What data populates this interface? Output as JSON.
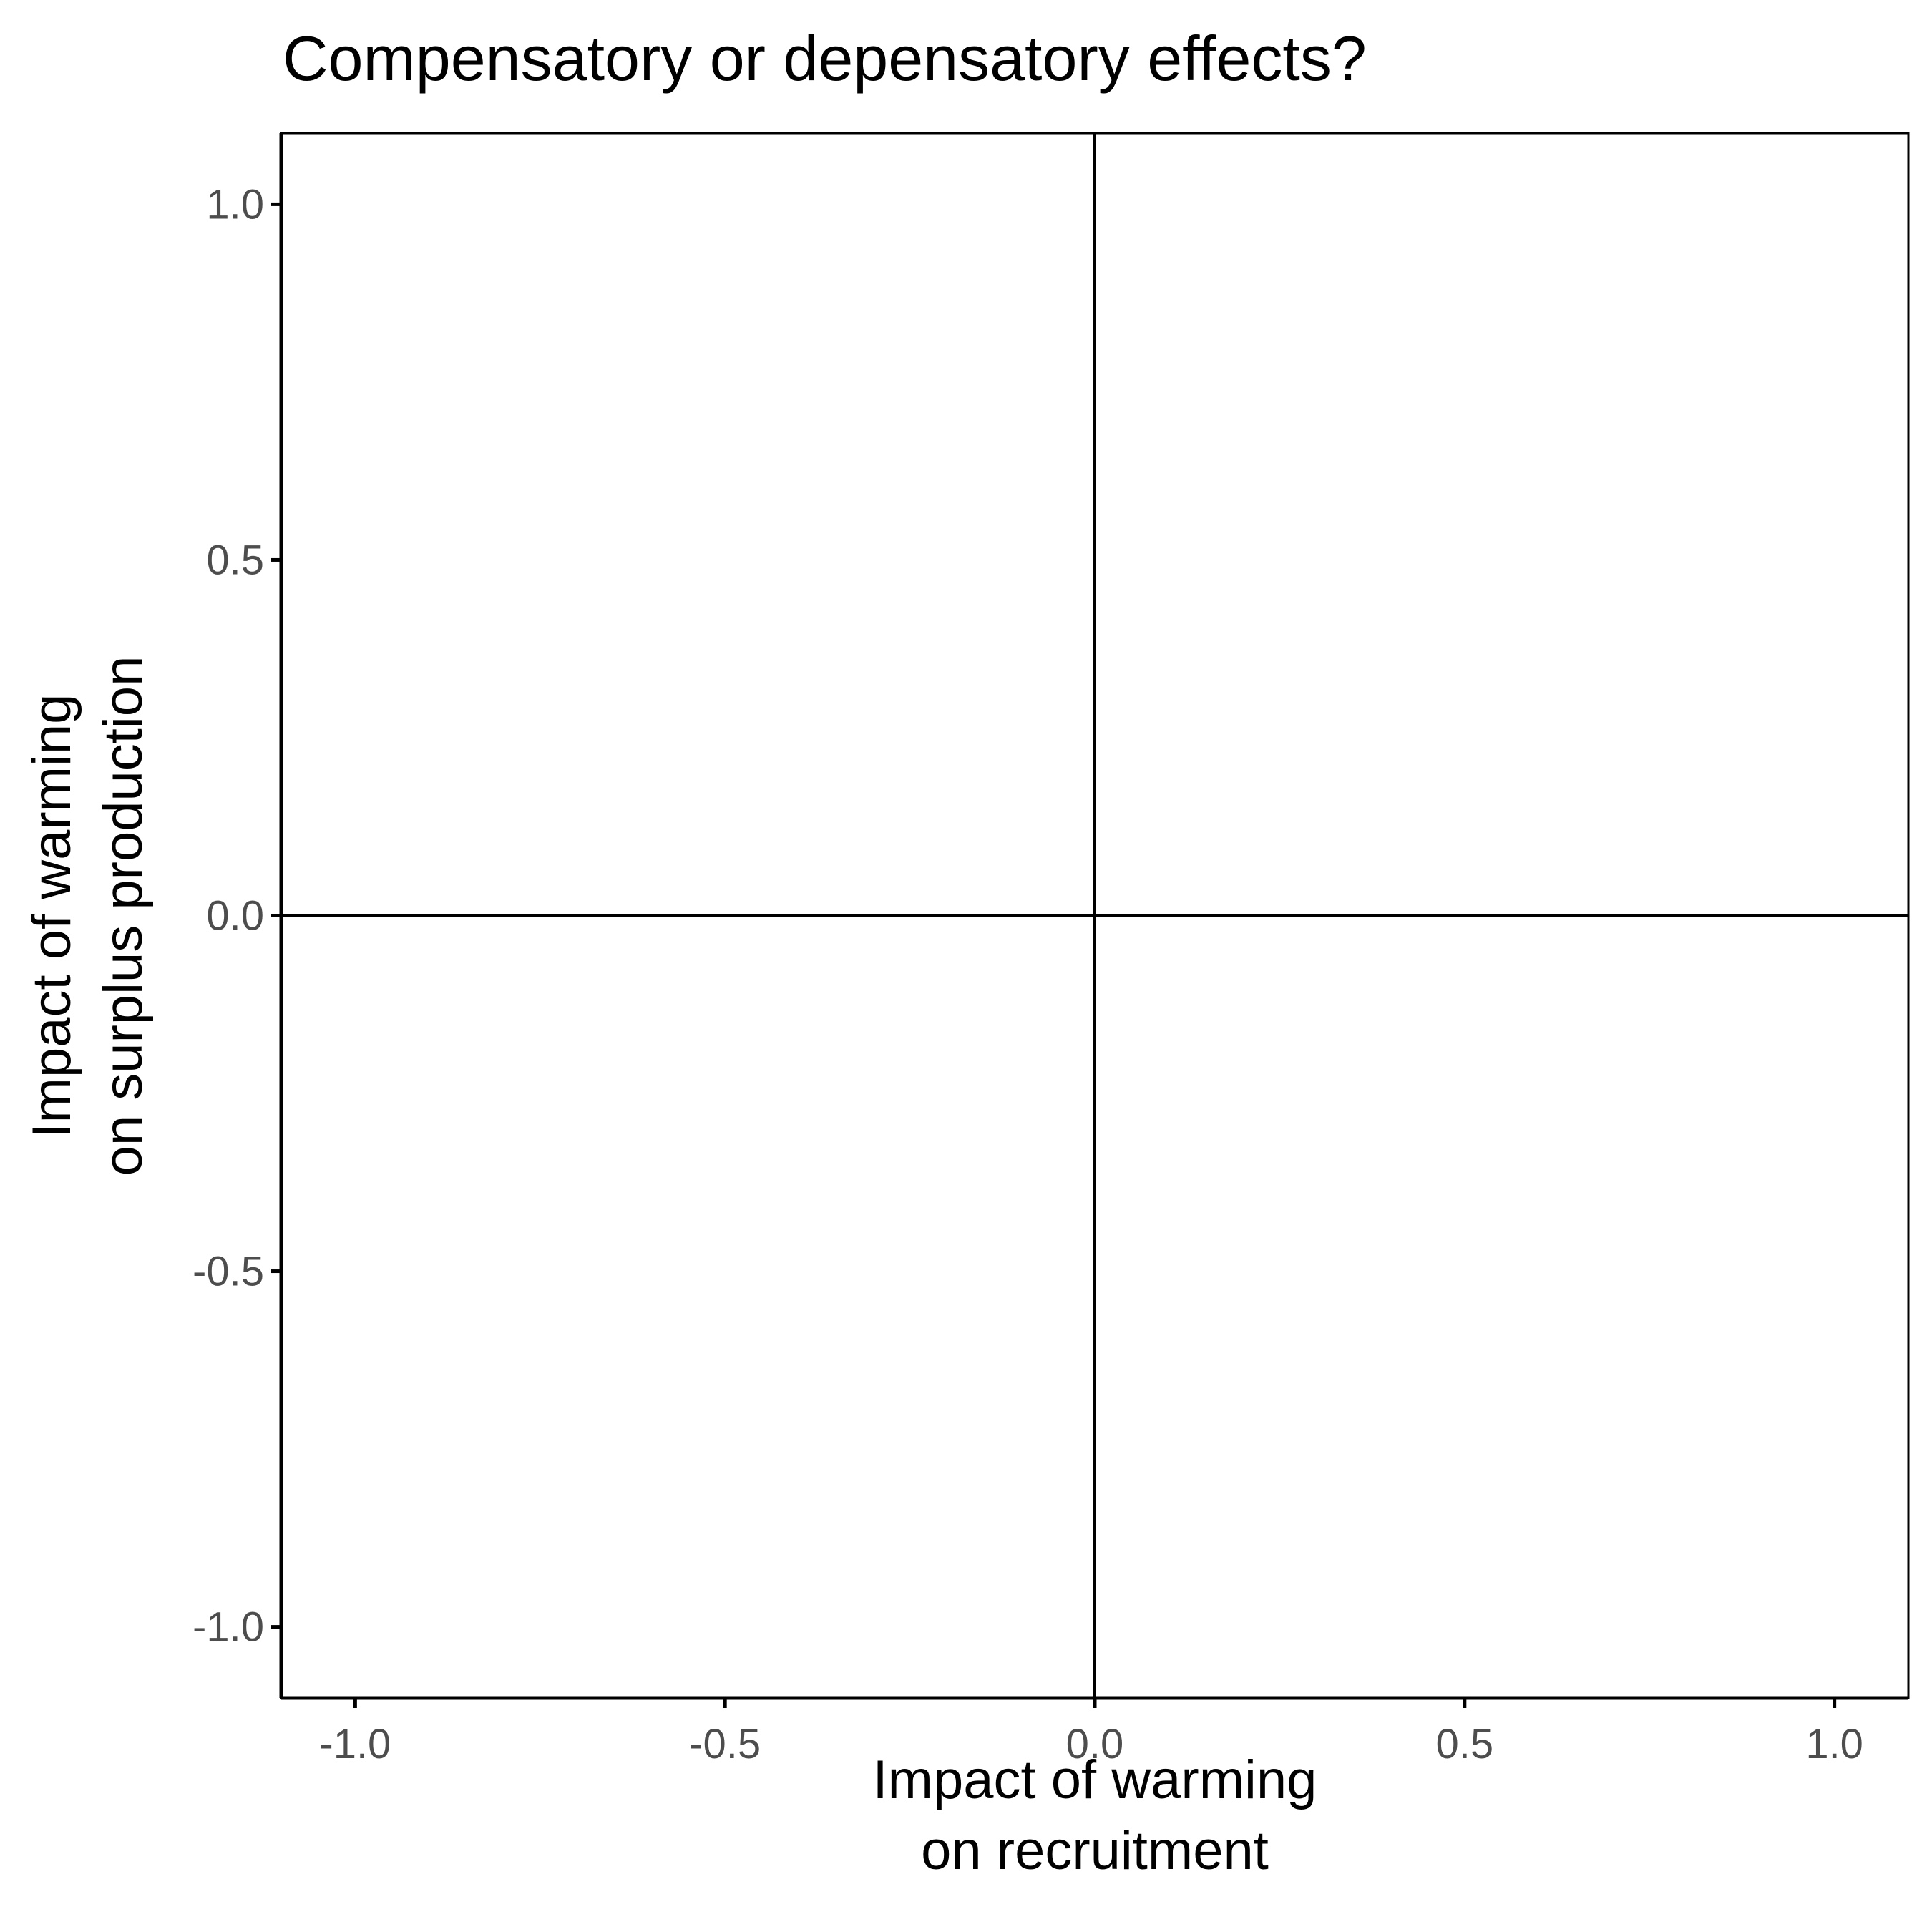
{
  "chart_data": {
    "type": "scatter",
    "title": "Compensatory or depensatory effects?",
    "xlabel": [
      "Impact of warming",
      "on recruitment"
    ],
    "ylabel": [
      "Impact of warming",
      "on surplus production"
    ],
    "xlim": [
      -1.1,
      1.1
    ],
    "ylim": [
      -1.1,
      1.1
    ],
    "x_ticks": [
      -1.0,
      -0.5,
      0.0,
      0.5,
      1.0
    ],
    "x_tick_labels": [
      "-1.0",
      "-0.5",
      "0.0",
      "0.5",
      "1.0"
    ],
    "y_ticks": [
      -1.0,
      -0.5,
      0.0,
      0.5,
      1.0
    ],
    "y_tick_labels": [
      "-1.0",
      "-0.5",
      "0.0",
      "0.5",
      "1.0"
    ],
    "reference_lines": {
      "vertical_x": 0,
      "horizontal_y": 0
    },
    "grid": false,
    "points": [],
    "colors": {
      "axis": "#000000",
      "tick_label": "#4d4d4d",
      "background": "#ffffff"
    }
  }
}
